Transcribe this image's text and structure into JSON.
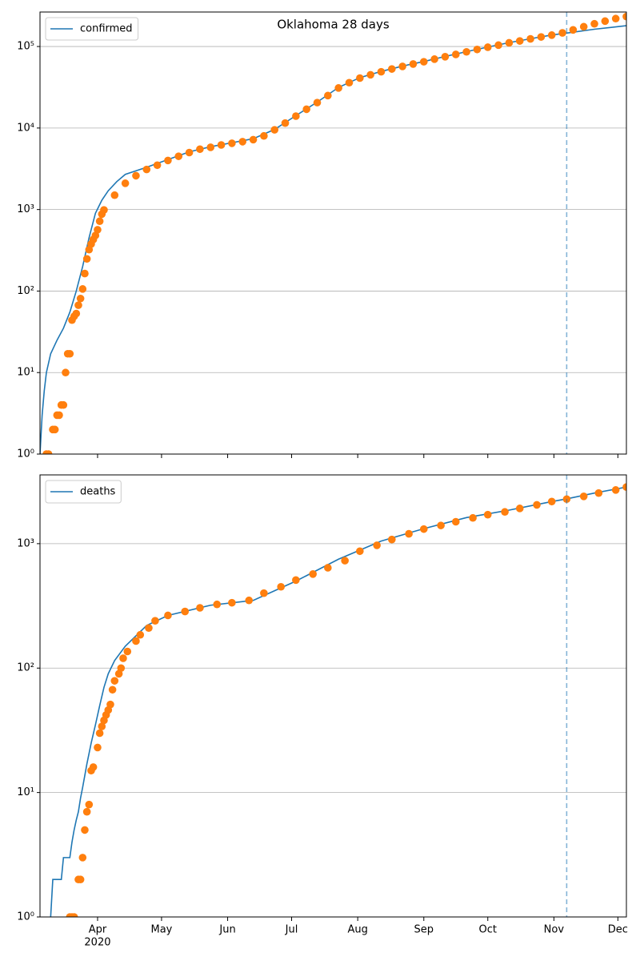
{
  "chart_data": [
    {
      "type": "line",
      "title": "Oklahoma 28 days",
      "xlim": [
        0,
        275
      ],
      "ylim": [
        1,
        265000
      ],
      "log_y": true,
      "grid": true,
      "legend": "upper left",
      "vline": 247,
      "yticks": [
        {
          "value": 1,
          "label": "10⁰"
        },
        {
          "value": 10,
          "label": "10¹"
        },
        {
          "value": 100,
          "label": "10²"
        },
        {
          "value": 1000,
          "label": "10³"
        },
        {
          "value": 10000,
          "label": "10⁴"
        },
        {
          "value": 100000,
          "label": "10⁵"
        }
      ],
      "series": [
        {
          "name": "confirmed",
          "color": "#1f77b4",
          "style": "line",
          "x": [
            0,
            1,
            2,
            3,
            5,
            8,
            11,
            14,
            17,
            20,
            23,
            26,
            29,
            32,
            36,
            40,
            50,
            60,
            70,
            80,
            90,
            100,
            110,
            120,
            130,
            140,
            150,
            160,
            170,
            180,
            190,
            200,
            210,
            220,
            230,
            240,
            247,
            260,
            275
          ],
          "values": [
            1,
            3,
            6,
            10,
            17,
            25,
            35,
            55,
            100,
            200,
            450,
            900,
            1300,
            1700,
            2200,
            2700,
            3300,
            4100,
            5100,
            5900,
            6600,
            7400,
            9600,
            14200,
            20800,
            31500,
            41500,
            49500,
            57500,
            65500,
            75500,
            86500,
            98500,
            111500,
            124500,
            138500,
            146000,
            163000,
            180000
          ]
        },
        {
          "color": "#ff7f0e",
          "style": "scatter",
          "x": [
            3,
            4,
            6,
            7,
            8,
            9,
            10,
            11,
            12,
            13,
            14,
            15,
            16,
            17,
            18,
            19,
            20,
            21,
            22,
            23,
            24,
            25,
            26,
            27,
            28,
            29,
            30,
            35,
            40,
            45,
            50,
            55,
            60,
            65,
            70,
            75,
            80,
            85,
            90,
            95,
            100,
            105,
            110,
            115,
            120,
            125,
            130,
            135,
            140,
            145,
            150,
            155,
            160,
            165,
            170,
            175,
            180,
            185,
            190,
            195,
            200,
            205,
            210,
            215,
            220,
            225,
            230,
            235,
            240,
            245,
            250,
            255,
            260,
            265,
            270,
            275
          ],
          "values": [
            1,
            1,
            2,
            2,
            3,
            3,
            4,
            4,
            10,
            17,
            17,
            44,
            49,
            53,
            67,
            81,
            106,
            164,
            248,
            322,
            377,
            429,
            481,
            565,
            719,
            879,
            988,
            1500,
            2100,
            2600,
            3100,
            3500,
            4000,
            4500,
            5000,
            5500,
            5800,
            6200,
            6500,
            6800,
            7200,
            8000,
            9500,
            11500,
            14000,
            17000,
            20500,
            25000,
            31000,
            36000,
            41000,
            45000,
            49000,
            53000,
            57000,
            61000,
            65000,
            70000,
            75000,
            80000,
            86000,
            92000,
            98000,
            104000,
            111000,
            117000,
            124000,
            131000,
            138000,
            147000,
            160000,
            175000,
            190000,
            205000,
            220000,
            233000
          ]
        }
      ]
    },
    {
      "type": "line",
      "xlim": [
        0,
        275
      ],
      "ylim": [
        1,
        3570
      ],
      "log_y": true,
      "grid": true,
      "legend": "upper left",
      "vline": 247,
      "yticks": [
        {
          "value": 1,
          "label": "10⁰"
        },
        {
          "value": 10,
          "label": "10¹"
        },
        {
          "value": 100,
          "label": "10²"
        },
        {
          "value": 1000,
          "label": "10³"
        }
      ],
      "xticks": [
        {
          "value": 27,
          "label": "Apr",
          "sublabel": "2020"
        },
        {
          "value": 57,
          "label": "May"
        },
        {
          "value": 88,
          "label": "Jun"
        },
        {
          "value": 118,
          "label": "Jul"
        },
        {
          "value": 149,
          "label": "Aug"
        },
        {
          "value": 180,
          "label": "Sep"
        },
        {
          "value": 210,
          "label": "Oct"
        },
        {
          "value": 241,
          "label": "Nov"
        },
        {
          "value": 271,
          "label": "Dec"
        }
      ],
      "series": [
        {
          "name": "deaths",
          "color": "#1f77b4",
          "style": "line",
          "x": [
            5,
            6,
            10,
            11,
            14,
            15,
            16,
            17,
            18,
            19,
            20,
            22,
            24,
            26,
            28,
            30,
            32,
            35,
            40,
            50,
            60,
            80,
            100,
            120,
            140,
            160,
            180,
            200,
            220,
            240,
            247,
            260,
            275
          ],
          "values": [
            1,
            2,
            2,
            3,
            3,
            4,
            5,
            6,
            7,
            9,
            11,
            17,
            25,
            35,
            50,
            70,
            90,
            115,
            150,
            220,
            265,
            320,
            350,
            500,
            750,
            1050,
            1320,
            1620,
            1860,
            2180,
            2290,
            2550,
            2850
          ]
        },
        {
          "color": "#ff7f0e",
          "style": "scatter",
          "x": [
            14,
            15,
            16,
            18,
            19,
            20,
            21,
            22,
            23,
            24,
            25,
            27,
            28,
            29,
            30,
            31,
            32,
            33,
            34,
            35,
            37,
            38,
            39,
            41,
            45,
            47,
            51,
            54,
            60,
            68,
            75,
            83,
            90,
            98,
            105,
            113,
            120,
            128,
            135,
            143,
            150,
            158,
            165,
            173,
            180,
            188,
            195,
            203,
            210,
            218,
            225,
            233,
            240,
            247,
            255,
            262,
            270,
            275
          ],
          "values": [
            1,
            1,
            1,
            2,
            2,
            3,
            5,
            7,
            8,
            15,
            16,
            23,
            30,
            34,
            38,
            42,
            46,
            51,
            67,
            79,
            90,
            100,
            120,
            136,
            165,
            185,
            210,
            240,
            265,
            285,
            305,
            325,
            335,
            350,
            400,
            450,
            510,
            570,
            640,
            730,
            870,
            970,
            1080,
            1200,
            1310,
            1400,
            1500,
            1610,
            1710,
            1800,
            1920,
            2050,
            2180,
            2280,
            2400,
            2550,
            2700,
            2850
          ]
        }
      ]
    }
  ]
}
